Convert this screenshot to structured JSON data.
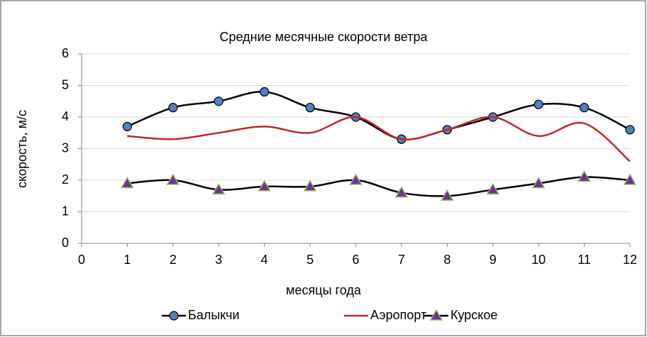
{
  "chart_data": {
    "type": "line",
    "title": "Средние месячные скорости ветра",
    "x_label": "месяцы года",
    "y_label": "скорость, м/с",
    "x": [
      1,
      2,
      3,
      4,
      5,
      6,
      7,
      8,
      9,
      10,
      11,
      12
    ],
    "series": [
      {
        "name": "Балыкчи",
        "color": "#000000",
        "marker": "circle",
        "marker_color": "#4f81bd",
        "values": [
          3.7,
          4.3,
          4.5,
          4.8,
          4.3,
          4.0,
          3.3,
          3.6,
          4.0,
          4.4,
          4.3,
          3.6
        ]
      },
      {
        "name": "Аэропорт",
        "color": "#c0282d",
        "marker": "none",
        "marker_color": "#c0282d",
        "values": [
          3.4,
          3.3,
          3.5,
          3.7,
          3.5,
          4.0,
          3.3,
          3.6,
          4.0,
          3.4,
          3.8,
          2.6
        ]
      },
      {
        "name": "Курское",
        "color": "#000000",
        "marker": "triangle",
        "marker_color": "#7030a0",
        "values": [
          1.9,
          2.0,
          1.7,
          1.8,
          1.8,
          2.0,
          1.6,
          1.5,
          1.7,
          1.9,
          2.1,
          2.0
        ]
      }
    ],
    "xlim": [
      0,
      12
    ],
    "xticks": [
      0,
      1,
      2,
      3,
      4,
      5,
      6,
      7,
      8,
      9,
      10,
      11,
      12
    ],
    "ylim": [
      0,
      6
    ],
    "yticks": [
      0,
      1,
      2,
      3,
      4,
      5,
      6
    ],
    "grid": true,
    "smooth": true,
    "legend": "bottom"
  }
}
